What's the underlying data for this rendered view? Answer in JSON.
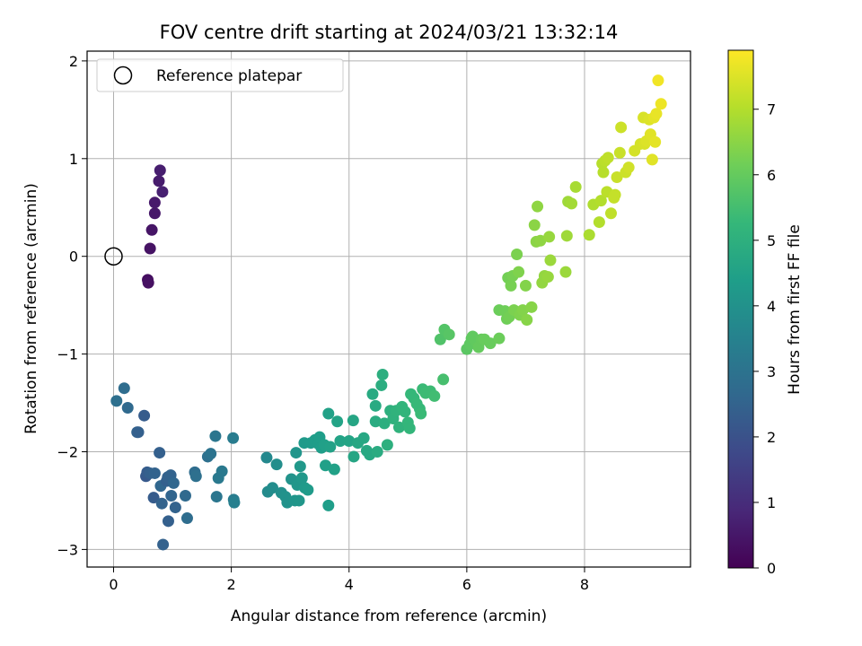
{
  "chart_data": {
    "type": "scatter",
    "title": "FOV centre drift starting at 2024/03/21 13:32:14",
    "xlabel": "Angular distance from reference (arcmin)",
    "ylabel": "Rotation from reference (arcmin)",
    "xlim": [
      -0.45,
      9.8
    ],
    "ylim": [
      -3.18,
      2.1
    ],
    "xticks": [
      0,
      2,
      4,
      6,
      8
    ],
    "xtick_labels": [
      "0",
      "2",
      "4",
      "6",
      "8"
    ],
    "yticks": [
      -3,
      -2,
      -1,
      0,
      1,
      2
    ],
    "ytick_labels": [
      "−3",
      "−2",
      "−1",
      "0",
      "1",
      "2"
    ],
    "grid": true,
    "legend": {
      "location": "upper-left",
      "entries": [
        "Reference platepar"
      ]
    },
    "reference_point": {
      "label": "Reference platepar",
      "x": 0,
      "y": 0,
      "marker": "open-circle"
    },
    "colorbar": {
      "label": "Hours from first FF file",
      "colormap": "viridis",
      "range": [
        0,
        7.9
      ],
      "ticks": [
        0,
        1,
        2,
        3,
        4,
        5,
        6,
        7
      ],
      "tick_labels": [
        "0",
        "1",
        "2",
        "3",
        "4",
        "5",
        "6",
        "7"
      ]
    },
    "colormap_stops": [
      "#440154",
      "#482878",
      "#3e4989",
      "#31688e",
      "#26828e",
      "#1f9e89",
      "#35b779",
      "#6ece58",
      "#b5de2b",
      "#fde725"
    ],
    "points": [
      {
        "x": 0.58,
        "y": -0.24,
        "c": 0.3
      },
      {
        "x": 0.59,
        "y": -0.27,
        "c": 0.35
      },
      {
        "x": 0.62,
        "y": 0.08,
        "c": 0.4
      },
      {
        "x": 0.65,
        "y": 0.27,
        "c": 0.45
      },
      {
        "x": 0.7,
        "y": 0.44,
        "c": 0.5
      },
      {
        "x": 0.7,
        "y": 0.55,
        "c": 0.55
      },
      {
        "x": 0.77,
        "y": 0.77,
        "c": 0.6
      },
      {
        "x": 0.79,
        "y": 0.88,
        "c": 0.65
      },
      {
        "x": 0.83,
        "y": 0.66,
        "c": 0.7
      },
      {
        "x": 0.05,
        "y": -1.48,
        "c": 2.9
      },
      {
        "x": 0.18,
        "y": -1.35,
        "c": 2.8
      },
      {
        "x": 0.24,
        "y": -1.55,
        "c": 2.7
      },
      {
        "x": 0.4,
        "y": -1.8,
        "c": 2.5
      },
      {
        "x": 0.42,
        "y": -1.8,
        "c": 2.4
      },
      {
        "x": 0.52,
        "y": -1.63,
        "c": 2.3
      },
      {
        "x": 0.55,
        "y": -2.25,
        "c": 2.2
      },
      {
        "x": 0.57,
        "y": -2.21,
        "c": 2.3
      },
      {
        "x": 0.62,
        "y": -2.22,
        "c": 2.4
      },
      {
        "x": 0.7,
        "y": -2.22,
        "c": 2.5
      },
      {
        "x": 0.68,
        "y": -2.47,
        "c": 2.3
      },
      {
        "x": 0.78,
        "y": -2.01,
        "c": 2.4
      },
      {
        "x": 0.8,
        "y": -2.35,
        "c": 2.6
      },
      {
        "x": 0.82,
        "y": -2.53,
        "c": 2.5
      },
      {
        "x": 0.84,
        "y": -2.95,
        "c": 2.45
      },
      {
        "x": 0.9,
        "y": -2.3,
        "c": 2.4
      },
      {
        "x": 0.92,
        "y": -2.26,
        "c": 2.45
      },
      {
        "x": 0.97,
        "y": -2.24,
        "c": 2.5
      },
      {
        "x": 0.93,
        "y": -2.71,
        "c": 2.4
      },
      {
        "x": 0.98,
        "y": -2.45,
        "c": 2.55
      },
      {
        "x": 1.02,
        "y": -2.32,
        "c": 2.6
      },
      {
        "x": 1.05,
        "y": -2.57,
        "c": 2.5
      },
      {
        "x": 1.22,
        "y": -2.45,
        "c": 2.7
      },
      {
        "x": 1.25,
        "y": -2.68,
        "c": 2.8
      },
      {
        "x": 1.38,
        "y": -2.21,
        "c": 2.8
      },
      {
        "x": 1.4,
        "y": -2.25,
        "c": 2.9
      },
      {
        "x": 1.6,
        "y": -2.05,
        "c": 2.9
      },
      {
        "x": 1.65,
        "y": -2.02,
        "c": 3.0
      },
      {
        "x": 1.73,
        "y": -1.84,
        "c": 3.1
      },
      {
        "x": 1.75,
        "y": -2.46,
        "c": 3.1
      },
      {
        "x": 1.78,
        "y": -2.27,
        "c": 3.2
      },
      {
        "x": 1.84,
        "y": -2.2,
        "c": 3.2
      },
      {
        "x": 2.03,
        "y": -1.86,
        "c": 3.3
      },
      {
        "x": 2.04,
        "y": -2.49,
        "c": 3.3
      },
      {
        "x": 2.05,
        "y": -2.52,
        "c": 3.4
      },
      {
        "x": 2.6,
        "y": -2.06,
        "c": 3.7
      },
      {
        "x": 2.62,
        "y": -2.41,
        "c": 3.8
      },
      {
        "x": 2.7,
        "y": -2.37,
        "c": 3.85
      },
      {
        "x": 2.77,
        "y": -2.13,
        "c": 3.9
      },
      {
        "x": 2.85,
        "y": -2.42,
        "c": 3.95
      },
      {
        "x": 2.92,
        "y": -2.46,
        "c": 4.0
      },
      {
        "x": 2.95,
        "y": -2.52,
        "c": 4.0
      },
      {
        "x": 3.02,
        "y": -2.28,
        "c": 4.05
      },
      {
        "x": 3.08,
        "y": -2.5,
        "c": 4.1
      },
      {
        "x": 3.1,
        "y": -2.01,
        "c": 4.1
      },
      {
        "x": 3.12,
        "y": -2.34,
        "c": 4.15
      },
      {
        "x": 3.15,
        "y": -2.5,
        "c": 4.15
      },
      {
        "x": 3.17,
        "y": -2.15,
        "c": 4.2
      },
      {
        "x": 3.2,
        "y": -2.27,
        "c": 4.2
      },
      {
        "x": 3.24,
        "y": -1.91,
        "c": 4.25
      },
      {
        "x": 3.25,
        "y": -2.37,
        "c": 4.25
      },
      {
        "x": 3.3,
        "y": -2.39,
        "c": 4.3
      },
      {
        "x": 3.35,
        "y": -1.91,
        "c": 4.3
      },
      {
        "x": 3.42,
        "y": -1.88,
        "c": 4.35
      },
      {
        "x": 3.48,
        "y": -1.92,
        "c": 4.35
      },
      {
        "x": 3.5,
        "y": -1.85,
        "c": 4.4
      },
      {
        "x": 3.53,
        "y": -1.96,
        "c": 4.4
      },
      {
        "x": 3.58,
        "y": -1.93,
        "c": 4.45
      },
      {
        "x": 3.6,
        "y": -2.14,
        "c": 4.45
      },
      {
        "x": 3.65,
        "y": -1.61,
        "c": 4.5
      },
      {
        "x": 3.65,
        "y": -2.55,
        "c": 4.4
      },
      {
        "x": 3.68,
        "y": -1.95,
        "c": 4.5
      },
      {
        "x": 3.75,
        "y": -2.18,
        "c": 4.5
      },
      {
        "x": 3.8,
        "y": -1.69,
        "c": 4.55
      },
      {
        "x": 3.85,
        "y": -1.89,
        "c": 4.55
      },
      {
        "x": 4.0,
        "y": -1.89,
        "c": 4.6
      },
      {
        "x": 4.07,
        "y": -1.68,
        "c": 4.65
      },
      {
        "x": 4.08,
        "y": -2.05,
        "c": 4.65
      },
      {
        "x": 4.15,
        "y": -1.91,
        "c": 4.7
      },
      {
        "x": 4.25,
        "y": -1.86,
        "c": 4.7
      },
      {
        "x": 4.3,
        "y": -1.99,
        "c": 4.75
      },
      {
        "x": 4.35,
        "y": -2.03,
        "c": 4.75
      },
      {
        "x": 4.4,
        "y": -1.41,
        "c": 4.8
      },
      {
        "x": 4.45,
        "y": -1.53,
        "c": 4.8
      },
      {
        "x": 4.45,
        "y": -1.69,
        "c": 4.85
      },
      {
        "x": 4.48,
        "y": -2.0,
        "c": 4.85
      },
      {
        "x": 4.55,
        "y": -1.32,
        "c": 4.9
      },
      {
        "x": 4.57,
        "y": -1.21,
        "c": 4.95
      },
      {
        "x": 4.6,
        "y": -1.71,
        "c": 4.95
      },
      {
        "x": 4.65,
        "y": -1.93,
        "c": 5.0
      },
      {
        "x": 4.7,
        "y": -1.58,
        "c": 5.0
      },
      {
        "x": 4.75,
        "y": -1.66,
        "c": 5.05
      },
      {
        "x": 4.8,
        "y": -1.58,
        "c": 5.1
      },
      {
        "x": 4.85,
        "y": -1.75,
        "c": 5.1
      },
      {
        "x": 4.9,
        "y": -1.54,
        "c": 5.15
      },
      {
        "x": 4.95,
        "y": -1.59,
        "c": 5.15
      },
      {
        "x": 5.0,
        "y": -1.7,
        "c": 5.2
      },
      {
        "x": 5.03,
        "y": -1.76,
        "c": 5.2
      },
      {
        "x": 5.05,
        "y": -1.41,
        "c": 5.25
      },
      {
        "x": 5.1,
        "y": -1.45,
        "c": 5.25
      },
      {
        "x": 5.15,
        "y": -1.51,
        "c": 5.3
      },
      {
        "x": 5.2,
        "y": -1.56,
        "c": 5.3
      },
      {
        "x": 5.22,
        "y": -1.61,
        "c": 5.35
      },
      {
        "x": 5.25,
        "y": -1.36,
        "c": 5.35
      },
      {
        "x": 5.3,
        "y": -1.4,
        "c": 5.4
      },
      {
        "x": 5.38,
        "y": -1.38,
        "c": 5.4
      },
      {
        "x": 5.45,
        "y": -1.43,
        "c": 5.45
      },
      {
        "x": 5.6,
        "y": -1.26,
        "c": 5.55
      },
      {
        "x": 5.55,
        "y": -0.85,
        "c": 5.7
      },
      {
        "x": 5.62,
        "y": -0.75,
        "c": 5.75
      },
      {
        "x": 5.7,
        "y": -0.8,
        "c": 5.8
      },
      {
        "x": 6.0,
        "y": -0.95,
        "c": 5.85
      },
      {
        "x": 6.05,
        "y": -0.9,
        "c": 5.9
      },
      {
        "x": 6.08,
        "y": -0.84,
        "c": 5.9
      },
      {
        "x": 6.1,
        "y": -0.82,
        "c": 5.95
      },
      {
        "x": 6.15,
        "y": -0.87,
        "c": 5.95
      },
      {
        "x": 6.2,
        "y": -0.93,
        "c": 6.0
      },
      {
        "x": 6.25,
        "y": -0.85,
        "c": 6.0
      },
      {
        "x": 6.3,
        "y": -0.85,
        "c": 6.05
      },
      {
        "x": 6.4,
        "y": -0.89,
        "c": 6.05
      },
      {
        "x": 6.55,
        "y": -0.84,
        "c": 6.1
      },
      {
        "x": 6.55,
        "y": -0.55,
        "c": 6.1
      },
      {
        "x": 6.65,
        "y": -0.56,
        "c": 6.15
      },
      {
        "x": 6.68,
        "y": -0.64,
        "c": 6.15
      },
      {
        "x": 6.7,
        "y": -0.22,
        "c": 6.2
      },
      {
        "x": 6.72,
        "y": -0.62,
        "c": 6.2
      },
      {
        "x": 6.75,
        "y": -0.3,
        "c": 6.25
      },
      {
        "x": 6.78,
        "y": -0.2,
        "c": 6.25
      },
      {
        "x": 6.8,
        "y": -0.55,
        "c": 6.3
      },
      {
        "x": 6.85,
        "y": 0.02,
        "c": 6.3
      },
      {
        "x": 6.88,
        "y": -0.16,
        "c": 6.35
      },
      {
        "x": 6.9,
        "y": -0.6,
        "c": 6.35
      },
      {
        "x": 6.95,
        "y": -0.55,
        "c": 6.4
      },
      {
        "x": 7.0,
        "y": -0.3,
        "c": 6.4
      },
      {
        "x": 7.02,
        "y": -0.65,
        "c": 6.45
      },
      {
        "x": 7.1,
        "y": -0.52,
        "c": 6.45
      },
      {
        "x": 7.15,
        "y": 0.32,
        "c": 6.5
      },
      {
        "x": 7.18,
        "y": 0.15,
        "c": 6.5
      },
      {
        "x": 7.2,
        "y": 0.51,
        "c": 6.55
      },
      {
        "x": 7.25,
        "y": 0.16,
        "c": 6.55
      },
      {
        "x": 7.28,
        "y": -0.27,
        "c": 6.6
      },
      {
        "x": 7.32,
        "y": -0.2,
        "c": 6.6
      },
      {
        "x": 7.38,
        "y": -0.21,
        "c": 6.65
      },
      {
        "x": 7.4,
        "y": 0.2,
        "c": 6.65
      },
      {
        "x": 7.42,
        "y": -0.04,
        "c": 6.7
      },
      {
        "x": 7.68,
        "y": -0.16,
        "c": 6.7
      },
      {
        "x": 7.7,
        "y": 0.21,
        "c": 6.75
      },
      {
        "x": 7.72,
        "y": 0.56,
        "c": 6.75
      },
      {
        "x": 7.78,
        "y": 0.54,
        "c": 6.8
      },
      {
        "x": 7.85,
        "y": 0.71,
        "c": 6.85
      },
      {
        "x": 8.08,
        "y": 0.22,
        "c": 6.9
      },
      {
        "x": 8.15,
        "y": 0.53,
        "c": 6.95
      },
      {
        "x": 8.25,
        "y": 0.35,
        "c": 7.0
      },
      {
        "x": 8.28,
        "y": 0.57,
        "c": 7.0
      },
      {
        "x": 8.3,
        "y": 0.95,
        "c": 7.05
      },
      {
        "x": 8.32,
        "y": 0.86,
        "c": 7.05
      },
      {
        "x": 8.35,
        "y": 0.98,
        "c": 7.1
      },
      {
        "x": 8.38,
        "y": 0.66,
        "c": 7.1
      },
      {
        "x": 8.4,
        "y": 1.01,
        "c": 7.15
      },
      {
        "x": 8.45,
        "y": 0.44,
        "c": 7.15
      },
      {
        "x": 8.5,
        "y": 0.6,
        "c": 7.2
      },
      {
        "x": 8.52,
        "y": 0.63,
        "c": 7.2
      },
      {
        "x": 8.55,
        "y": 0.81,
        "c": 7.25
      },
      {
        "x": 8.6,
        "y": 1.06,
        "c": 7.25
      },
      {
        "x": 8.62,
        "y": 1.32,
        "c": 7.3
      },
      {
        "x": 8.7,
        "y": 0.86,
        "c": 7.3
      },
      {
        "x": 8.75,
        "y": 0.91,
        "c": 7.35
      },
      {
        "x": 8.85,
        "y": 1.08,
        "c": 7.4
      },
      {
        "x": 8.95,
        "y": 1.15,
        "c": 7.4
      },
      {
        "x": 9.0,
        "y": 1.42,
        "c": 7.45
      },
      {
        "x": 9.02,
        "y": 1.15,
        "c": 7.45
      },
      {
        "x": 9.05,
        "y": 1.18,
        "c": 7.5
      },
      {
        "x": 9.1,
        "y": 1.4,
        "c": 7.5
      },
      {
        "x": 9.12,
        "y": 1.25,
        "c": 7.55
      },
      {
        "x": 9.15,
        "y": 0.99,
        "c": 7.55
      },
      {
        "x": 9.18,
        "y": 1.42,
        "c": 7.6
      },
      {
        "x": 9.2,
        "y": 1.17,
        "c": 7.6
      },
      {
        "x": 9.22,
        "y": 1.46,
        "c": 7.65
      },
      {
        "x": 9.25,
        "y": 1.8,
        "c": 7.75
      },
      {
        "x": 9.3,
        "y": 1.56,
        "c": 7.7
      }
    ]
  }
}
